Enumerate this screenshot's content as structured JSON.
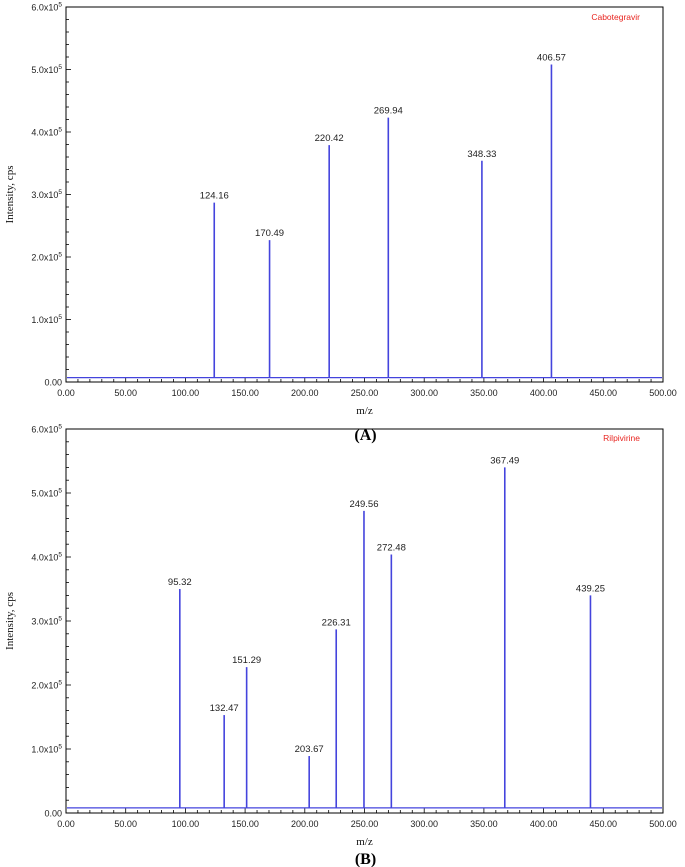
{
  "colors": {
    "line": "#4444dd",
    "compound": "#e8241f",
    "axis": "#000000"
  },
  "chart_data": [
    {
      "type": "line",
      "panel_label": "(A)",
      "compound": "Cabotegravir",
      "xlabel": "m/z",
      "ylabel": "Intensity, cps",
      "xlim": [
        0,
        500
      ],
      "ylim": [
        0,
        600000
      ],
      "x_ticks": [
        "0.00",
        "50.00",
        "100.00",
        "150.00",
        "200.00",
        "250.00",
        "300.00",
        "350.00",
        "400.00",
        "450.00",
        "500.00"
      ],
      "y_ticks": [
        {
          "mant": "0.00",
          "exp": ""
        },
        {
          "mant": "1.0x10",
          "exp": "5"
        },
        {
          "mant": "2.0x10",
          "exp": "5"
        },
        {
          "mant": "3.0x10",
          "exp": "5"
        },
        {
          "mant": "4.0x10",
          "exp": "5"
        },
        {
          "mant": "5.0x10",
          "exp": "5"
        },
        {
          "mant": "6.0x10",
          "exp": "5"
        }
      ],
      "baseline": 7000,
      "peaks": [
        {
          "mz": 124.16,
          "label": "124.16",
          "intensity": 287000
        },
        {
          "mz": 170.49,
          "label": "170.49",
          "intensity": 227000
        },
        {
          "mz": 220.42,
          "label": "220.42",
          "intensity": 379000
        },
        {
          "mz": 269.94,
          "label": "269.94",
          "intensity": 423000
        },
        {
          "mz": 348.33,
          "label": "348.33",
          "intensity": 354000
        },
        {
          "mz": 406.57,
          "label": "406.57",
          "intensity": 508000
        }
      ]
    },
    {
      "type": "line",
      "panel_label": "(B)",
      "compound": "Rilpivirine",
      "xlabel": "m/z",
      "ylabel": "Intensity, cps",
      "xlim": [
        0,
        500
      ],
      "ylim": [
        0,
        600000
      ],
      "x_ticks": [
        "0.00",
        "50.00",
        "100.00",
        "150.00",
        "200.00",
        "250.00",
        "300.00",
        "350.00",
        "400.00",
        "450.00",
        "500.00"
      ],
      "y_ticks": [
        {
          "mant": "0.00",
          "exp": ""
        },
        {
          "mant": "1.0x10",
          "exp": "5"
        },
        {
          "mant": "2.0x10",
          "exp": "5"
        },
        {
          "mant": "3.0x10",
          "exp": "5"
        },
        {
          "mant": "4.0x10",
          "exp": "5"
        },
        {
          "mant": "5.0x10",
          "exp": "5"
        },
        {
          "mant": "6.0x10",
          "exp": "5"
        }
      ],
      "baseline": 8000,
      "peaks": [
        {
          "mz": 95.32,
          "label": "95.32",
          "intensity": 350000
        },
        {
          "mz": 132.47,
          "label": "132.47",
          "intensity": 153000
        },
        {
          "mz": 151.29,
          "label": "151.29",
          "intensity": 228000
        },
        {
          "mz": 203.67,
          "label": "203.67",
          "intensity": 89000
        },
        {
          "mz": 226.31,
          "label": "226.31",
          "intensity": 287000
        },
        {
          "mz": 249.56,
          "label": "249.56",
          "intensity": 472000
        },
        {
          "mz": 272.48,
          "label": "272.48",
          "intensity": 404000
        },
        {
          "mz": 367.49,
          "label": "367.49",
          "intensity": 540000
        },
        {
          "mz": 439.25,
          "label": "439.25",
          "intensity": 340000
        }
      ]
    }
  ]
}
